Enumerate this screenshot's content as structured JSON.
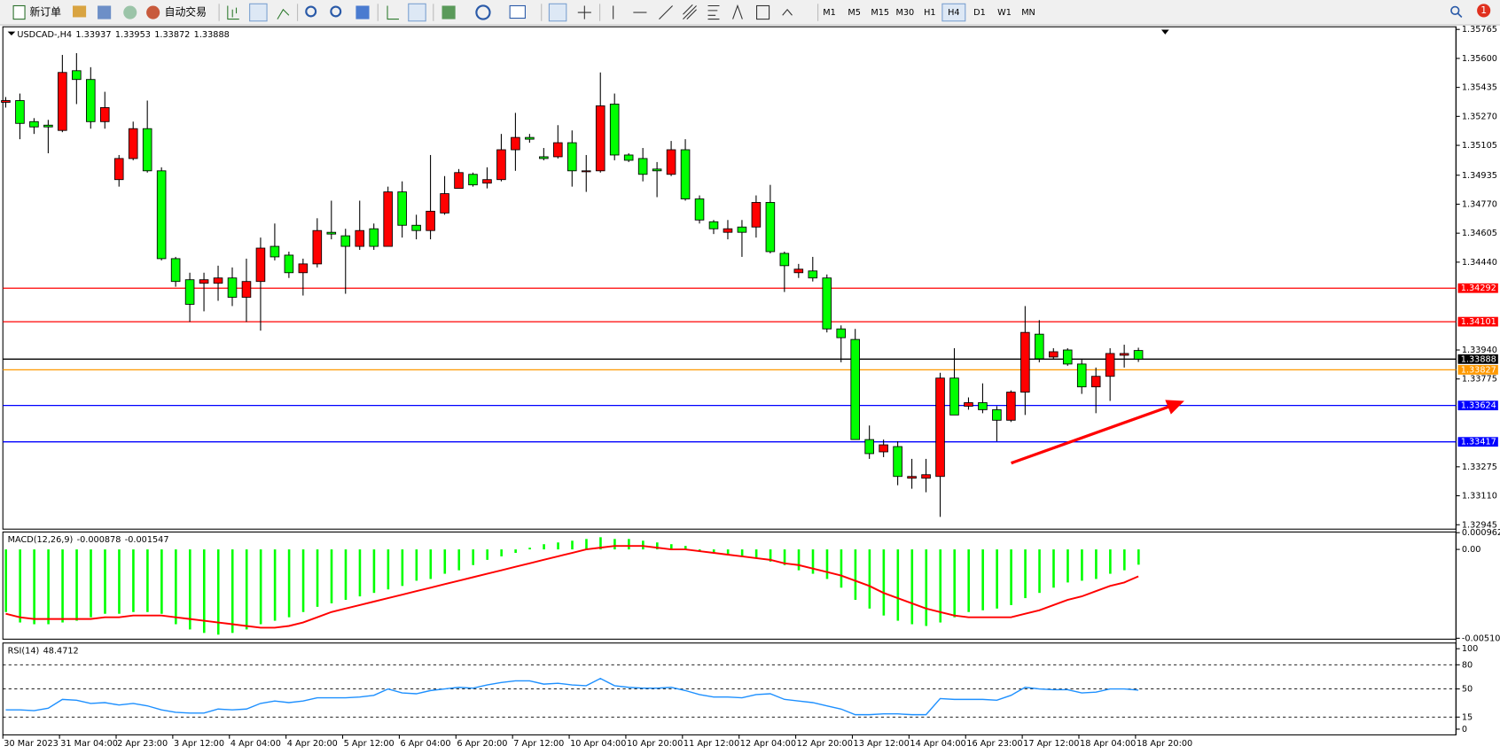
{
  "toolbar": {
    "new_order": "新订单",
    "auto_trading": "自动交易",
    "timeframes": [
      "M1",
      "M5",
      "M15",
      "M30",
      "H1",
      "H4",
      "D1",
      "W1",
      "MN"
    ],
    "active_timeframe": 5,
    "notification_count": 1
  },
  "chart_data": [
    {
      "type": "candlestick",
      "title": "USDCAD-,H4",
      "up_color": "#ff0000",
      "down_color": "#00ff00",
      "categories": [
        "30 Mar 2023",
        null,
        null,
        null,
        "31 Mar 04:00",
        null,
        null,
        null,
        "2 Apr 23:00",
        null,
        null,
        null,
        "3 Apr 12:00",
        null,
        null,
        null,
        "4 Apr 04:00",
        null,
        null,
        null,
        "4 Apr 20:00",
        null,
        null,
        null,
        "5 Apr 12:00",
        null,
        null,
        null,
        "6 Apr 04:00",
        null,
        null,
        null,
        "6 Apr 20:00",
        null,
        null,
        null,
        "7 Apr 12:00",
        null,
        null,
        null,
        "10 Apr 04:00",
        null,
        null,
        null,
        "10 Apr 20:00",
        null,
        null,
        null,
        "11 Apr 12:00",
        null,
        null,
        null,
        "12 Apr 04:00",
        null,
        null,
        null,
        "12 Apr 20:00",
        null,
        null,
        null,
        "13 Apr 12:00",
        null,
        null,
        null,
        "14 Apr 04:00",
        null,
        null,
        null,
        "16 Apr 23:00",
        null,
        null,
        null,
        "17 Apr 12:00",
        null,
        null,
        null,
        "18 Apr 04:00",
        null,
        null,
        null,
        "18 Apr 20:00"
      ],
      "ohlc": [
        [
          1.3535,
          1.3538,
          1.3532,
          1.3536
        ],
        [
          1.3536,
          1.354,
          1.3514,
          1.3523
        ],
        [
          1.3524,
          1.3526,
          1.3517,
          1.3521
        ],
        [
          1.3522,
          1.3525,
          1.3506,
          1.3521
        ],
        [
          1.3519,
          1.3562,
          1.3518,
          1.3552
        ],
        [
          1.3553,
          1.3563,
          1.3534,
          1.3548
        ],
        [
          1.3548,
          1.3555,
          1.352,
          1.3524
        ],
        [
          1.3524,
          1.3541,
          1.352,
          1.3532
        ],
        [
          1.3491,
          1.3505,
          1.3487,
          1.3503
        ],
        [
          1.3503,
          1.3524,
          1.3502,
          1.352
        ],
        [
          1.352,
          1.3536,
          1.3495,
          1.3496
        ],
        [
          1.3496,
          1.3498,
          1.3445,
          1.3446
        ],
        [
          1.3446,
          1.3447,
          1.343,
          1.3433
        ],
        [
          1.3434,
          1.3438,
          1.341,
          1.342
        ],
        [
          1.3432,
          1.3438,
          1.3416,
          1.3434
        ],
        [
          1.3432,
          1.3442,
          1.3422,
          1.3435
        ],
        [
          1.3435,
          1.3441,
          1.3419,
          1.3424
        ],
        [
          1.3424,
          1.3446,
          1.341,
          1.3433
        ],
        [
          1.3433,
          1.3458,
          1.3405,
          1.3452
        ],
        [
          1.3453,
          1.3466,
          1.3445,
          1.3447
        ],
        [
          1.3448,
          1.345,
          1.3435,
          1.3438
        ],
        [
          1.3438,
          1.3446,
          1.3425,
          1.3443
        ],
        [
          1.3443,
          1.3469,
          1.3441,
          1.3462
        ],
        [
          1.3461,
          1.3479,
          1.3457,
          1.346
        ],
        [
          1.3459,
          1.3463,
          1.3426,
          1.3453
        ],
        [
          1.3453,
          1.3479,
          1.3451,
          1.3462
        ],
        [
          1.3463,
          1.3466,
          1.3451,
          1.3453
        ],
        [
          1.3453,
          1.3487,
          1.3453,
          1.3484
        ],
        [
          1.3484,
          1.349,
          1.3458,
          1.3465
        ],
        [
          1.3465,
          1.3471,
          1.3457,
          1.3462
        ],
        [
          1.3462,
          1.3505,
          1.3457,
          1.3473
        ],
        [
          1.3472,
          1.3493,
          1.3471,
          1.3483
        ],
        [
          1.3486,
          1.3497,
          1.3486,
          1.3495
        ],
        [
          1.3494,
          1.3495,
          1.3487,
          1.3488
        ],
        [
          1.3489,
          1.3498,
          1.3486,
          1.3491
        ],
        [
          1.3491,
          1.3517,
          1.349,
          1.3508
        ],
        [
          1.3508,
          1.3529,
          1.3496,
          1.3515
        ],
        [
          1.3515,
          1.3517,
          1.3512,
          1.3514
        ],
        [
          1.3504,
          1.3509,
          1.3502,
          1.3503
        ],
        [
          1.3504,
          1.3522,
          1.3503,
          1.3512
        ],
        [
          1.3512,
          1.3519,
          1.3487,
          1.3496
        ],
        [
          1.3496,
          1.3505,
          1.3484,
          1.3496
        ],
        [
          1.3496,
          1.3552,
          1.3495,
          1.3533
        ],
        [
          1.3534,
          1.354,
          1.3502,
          1.3505
        ],
        [
          1.3505,
          1.3506,
          1.3501,
          1.3502
        ],
        [
          1.3503,
          1.3509,
          1.349,
          1.3494
        ],
        [
          1.3497,
          1.3501,
          1.3481,
          1.3496
        ],
        [
          1.3494,
          1.3513,
          1.3493,
          1.3508
        ],
        [
          1.3508,
          1.3514,
          1.3479,
          1.348
        ],
        [
          1.348,
          1.3482,
          1.3466,
          1.3468
        ],
        [
          1.3467,
          1.3468,
          1.346,
          1.3463
        ],
        [
          1.3461,
          1.3468,
          1.3457,
          1.3463
        ],
        [
          1.3464,
          1.3468,
          1.3447,
          1.3461
        ],
        [
          1.3464,
          1.3482,
          1.3458,
          1.3478
        ],
        [
          1.3478,
          1.3488,
          1.3449,
          1.345
        ],
        [
          1.3449,
          1.345,
          1.3427,
          1.3442
        ],
        [
          1.3438,
          1.3443,
          1.3435,
          1.344
        ],
        [
          1.3439,
          1.3447,
          1.3433,
          1.3435
        ],
        [
          1.3435,
          1.3437,
          1.3404,
          1.3406
        ],
        [
          1.3406,
          1.3408,
          1.3387,
          1.3401
        ],
        [
          1.34,
          1.3406,
          1.3343,
          1.3343
        ],
        [
          1.3343,
          1.3351,
          1.3332,
          1.3335
        ],
        [
          1.3336,
          1.3343,
          1.3333,
          1.334
        ],
        [
          1.3339,
          1.3342,
          1.3317,
          1.3322
        ],
        [
          1.3321,
          1.3332,
          1.3315,
          1.3322
        ],
        [
          1.3321,
          1.3332,
          1.3313,
          1.3323
        ],
        [
          1.3322,
          1.3381,
          1.3299,
          1.3378
        ],
        [
          1.3378,
          1.3395,
          1.3357,
          1.3357
        ],
        [
          1.3362,
          1.3367,
          1.336,
          1.3364
        ],
        [
          1.3364,
          1.3375,
          1.3358,
          1.336
        ],
        [
          1.336,
          1.3362,
          1.3342,
          1.3354
        ],
        [
          1.3354,
          1.3371,
          1.3353,
          1.337
        ],
        [
          1.337,
          1.3419,
          1.3357,
          1.3404
        ],
        [
          1.3403,
          1.3411,
          1.3387,
          1.3389
        ],
        [
          1.339,
          1.3395,
          1.3389,
          1.3393
        ],
        [
          1.3394,
          1.3395,
          1.3385,
          1.3386
        ],
        [
          1.3386,
          1.3389,
          1.3369,
          1.3373
        ],
        [
          1.3373,
          1.3384,
          1.3358,
          1.3379
        ],
        [
          1.3379,
          1.3395,
          1.3365,
          1.3392
        ],
        [
          1.3391,
          1.3397,
          1.3384,
          1.3392
        ],
        [
          1.33937,
          1.33953,
          1.33872,
          1.33888
        ]
      ],
      "ylim": [
        1.3292,
        1.3578
      ],
      "yticks": [
        1.35765,
        {
          "value": 1.356,
          "label": "1.35600"
        },
        1.35435,
        {
          "value": 1.3527,
          "label": "1.35270"
        },
        1.35105,
        1.34935,
        {
          "value": 1.3477,
          "label": "1.34770"
        },
        1.34605,
        {
          "value": 1.3444,
          "label": "1.34440"
        },
        {
          "value": 1.3394,
          "label": "1.33940"
        },
        1.33775,
        1.33275,
        {
          "value": 1.3311,
          "label": "1.33110"
        },
        1.32945
      ],
      "hlines": [
        {
          "value": 1.34292,
          "color": "#ff0000"
        },
        {
          "value": 1.34101,
          "color": "#ff0000"
        },
        {
          "value": 1.33888,
          "color": "#000000"
        },
        {
          "value": 1.33827,
          "color": "#ff9900"
        },
        {
          "value": 1.33624,
          "color": "#0000ff"
        },
        {
          "value": 1.33417,
          "color": "#0000ff"
        }
      ]
    },
    {
      "type": "macd",
      "title": "MACD(12,26,9)",
      "ylim": [
        -0.00516,
        0.001
      ],
      "yticks": [
        0.000962,
        {
          "value": 0,
          "label": "0.00"
        },
        -0.005107
      ],
      "series": [
        {
          "style": "bar",
          "color": "#00ff00",
          "values": [
            -0.0036,
            -0.0042,
            -0.0043,
            -0.0043,
            -0.0042,
            -0.0041,
            -0.0039,
            -0.0037,
            -0.0037,
            -0.0036,
            -0.0036,
            -0.0037,
            -0.0043,
            -0.0046,
            -0.0048,
            -0.0049,
            -0.0048,
            -0.0046,
            -0.0043,
            -0.0041,
            -0.0039,
            -0.0036,
            -0.0033,
            -0.0031,
            -0.0029,
            -0.0027,
            -0.0025,
            -0.0023,
            -0.0021,
            -0.0018,
            -0.0017,
            -0.0014,
            -0.0012,
            -0.0009,
            -0.0006,
            -0.0004,
            -0.0002,
            0.0001,
            0.0003,
            0.0004,
            0.0005,
            0.0006,
            0.0007,
            0.0006,
            0.0006,
            0.0005,
            0.0004,
            0.0003,
            0.0002,
            -0.0001,
            -0.0002,
            -0.0003,
            -0.0004,
            -0.0005,
            -0.0007,
            -0.0009,
            -0.0012,
            -0.0014,
            -0.0017,
            -0.0022,
            -0.0029,
            -0.0034,
            -0.0038,
            -0.0041,
            -0.0043,
            -0.0044,
            -0.0042,
            -0.0039,
            -0.0036,
            -0.0035,
            -0.0034,
            -0.0032,
            -0.0028,
            -0.0025,
            -0.0022,
            -0.0019,
            -0.0018,
            -0.0017,
            -0.0014,
            -0.0012,
            -0.000878
          ]
        },
        {
          "style": "line",
          "color": "#ff0000",
          "values": [
            -0.0037,
            -0.0039,
            -0.004,
            -0.004,
            -0.004,
            -0.004,
            -0.004,
            -0.0039,
            -0.0039,
            -0.0038,
            -0.0038,
            -0.0038,
            -0.0039,
            -0.004,
            -0.0041,
            -0.0042,
            -0.0043,
            -0.0044,
            -0.0045,
            -0.0045,
            -0.0044,
            -0.0042,
            -0.0039,
            -0.0036,
            -0.0034,
            -0.0032,
            -0.003,
            -0.0028,
            -0.0026,
            -0.0024,
            -0.0022,
            -0.002,
            -0.0018,
            -0.0016,
            -0.0014,
            -0.0012,
            -0.001,
            -0.0008,
            -0.0006,
            -0.0004,
            -0.0002,
            0,
            0.0001,
            0.0002,
            0.0002,
            0.0002,
            0.0001,
            0,
            0,
            -0.0001,
            -0.0002,
            -0.0003,
            -0.0004,
            -0.0005,
            -0.0006,
            -0.0008,
            -0.0009,
            -0.0011,
            -0.0013,
            -0.0015,
            -0.0018,
            -0.0021,
            -0.0025,
            -0.0028,
            -0.0031,
            -0.0034,
            -0.0036,
            -0.0038,
            -0.0039,
            -0.0039,
            -0.0039,
            -0.0039,
            -0.0037,
            -0.0035,
            -0.0032,
            -0.0029,
            -0.0027,
            -0.0024,
            -0.0021,
            -0.0019,
            -0.001547
          ]
        }
      ]
    },
    {
      "type": "rsi",
      "title": "RSI(14)",
      "color": "#1e90ff",
      "ylim": [
        -7.1,
        107.1
      ],
      "yticks": [
        100,
        80,
        50,
        15,
        0
      ],
      "levels": [
        80,
        50,
        15
      ],
      "values": [
        24,
        24,
        23,
        26,
        37,
        36,
        32,
        33,
        30,
        32,
        29,
        24,
        21,
        20,
        20,
        25,
        24,
        25,
        32,
        35,
        33,
        35,
        39,
        39,
        39,
        40,
        42,
        50,
        45,
        44,
        48,
        50,
        52,
        51,
        55,
        58,
        60,
        60,
        56,
        57,
        55,
        54,
        63,
        54,
        52,
        51,
        51,
        52,
        48,
        43,
        40,
        40,
        39,
        43,
        44,
        37,
        35,
        33,
        29,
        25,
        18,
        18,
        19,
        19,
        18,
        18,
        38,
        37,
        37,
        37,
        36,
        42,
        52,
        50,
        49,
        49,
        45,
        46,
        50,
        50,
        48.4712
      ]
    }
  ]
}
